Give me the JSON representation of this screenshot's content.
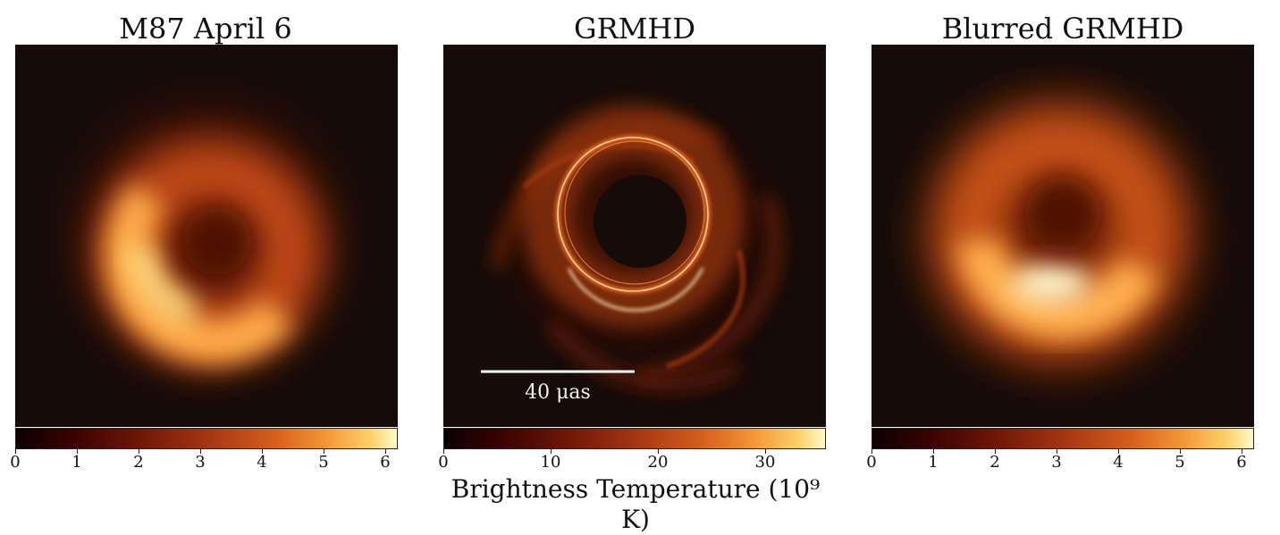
{
  "panels": [
    {
      "title": "M87 April 6",
      "colorbar_ticks": [
        "0",
        "1",
        "2",
        "3",
        "4",
        "5",
        "6"
      ]
    },
    {
      "title": "GRMHD",
      "colorbar_ticks": [
        "0",
        "10",
        "20",
        "30"
      ],
      "scale_bar_label": "40 μas"
    },
    {
      "title": "Blurred GRMHD",
      "colorbar_ticks": [
        "0",
        "1",
        "2",
        "3",
        "4",
        "5",
        "6"
      ]
    }
  ],
  "colorbar_label": "Brightness Temperature (10⁹ K)",
  "colors": {
    "background_dark": "#150b08",
    "colormap": [
      "#0d0000",
      "#3a0300",
      "#6e1606",
      "#a33512",
      "#d65f1c",
      "#f59a38",
      "#fbd168",
      "#fffbc8"
    ]
  }
}
